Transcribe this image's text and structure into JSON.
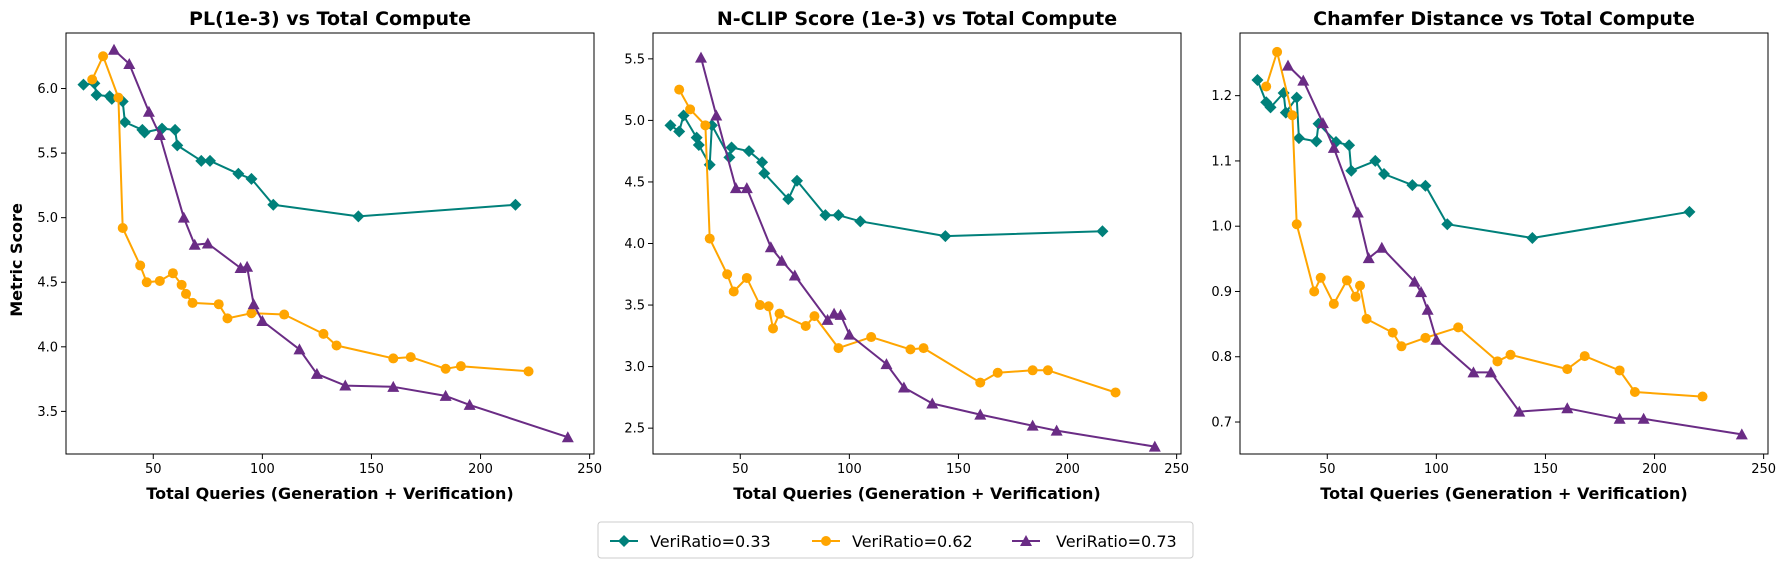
{
  "chart_data": [
    {
      "type": "line",
      "title": "PL(1e-3) vs Total Compute",
      "xlabel": "Total Queries (Generation + Verification)",
      "ylabel": "Metric Score",
      "xlim": [
        10,
        252
      ],
      "ylim": [
        3.17,
        6.43
      ],
      "xticks": [
        50,
        100,
        150,
        200,
        250
      ],
      "yticks": [
        3.5,
        4.0,
        4.5,
        5.0,
        5.5,
        6.0
      ],
      "ytick_labels": [
        "3.5",
        "4.0",
        "4.5",
        "5.0",
        "5.5",
        "6.0"
      ],
      "series": [
        {
          "name": "VeriRatio=0.33",
          "x": [
            18,
            23,
            24,
            30,
            31,
            36,
            37,
            45,
            46,
            54,
            60,
            61,
            72,
            76,
            89,
            95,
            105,
            144,
            216
          ],
          "y": [
            6.03,
            6.04,
            5.95,
            5.94,
            5.92,
            5.9,
            5.74,
            5.68,
            5.66,
            5.69,
            5.68,
            5.56,
            5.44,
            5.44,
            5.34,
            5.3,
            5.1,
            5.01,
            5.1
          ]
        },
        {
          "name": "VeriRatio=0.62",
          "x": [
            22,
            27,
            34,
            36,
            44,
            47,
            53,
            59,
            63,
            65,
            68,
            80,
            84,
            95,
            110,
            128,
            134,
            160,
            168,
            184,
            191,
            222
          ],
          "y": [
            6.07,
            6.25,
            5.93,
            4.92,
            4.63,
            4.5,
            4.51,
            4.57,
            4.48,
            4.41,
            4.34,
            4.33,
            4.22,
            4.26,
            4.25,
            4.1,
            4.01,
            3.91,
            3.92,
            3.83,
            3.85,
            3.81
          ]
        },
        {
          "name": "VeriRatio=0.73",
          "x": [
            32,
            39,
            48,
            53,
            64,
            69,
            75,
            90,
            93,
            96,
            100,
            117,
            125,
            138,
            160,
            184,
            195,
            240
          ],
          "y": [
            6.3,
            6.19,
            5.82,
            5.64,
            5.0,
            4.79,
            4.8,
            4.61,
            4.62,
            4.33,
            4.2,
            3.98,
            3.79,
            3.7,
            3.69,
            3.62,
            3.55,
            3.3
          ]
        }
      ]
    },
    {
      "type": "line",
      "title": "N-CLIP Score (1e-3) vs Total Compute",
      "xlabel": "Total Queries (Generation + Verification)",
      "ylabel": "",
      "xlim": [
        10,
        252
      ],
      "ylim": [
        2.29,
        5.71
      ],
      "xticks": [
        50,
        100,
        150,
        200,
        250
      ],
      "yticks": [
        2.5,
        3.0,
        3.5,
        4.0,
        4.5,
        5.0,
        5.5
      ],
      "ytick_labels": [
        "2.5",
        "3.0",
        "3.5",
        "4.0",
        "4.5",
        "5.0",
        "5.5"
      ],
      "series": [
        {
          "name": "VeriRatio=0.33",
          "x": [
            18,
            22,
            24,
            30,
            31,
            36,
            37,
            45,
            46,
            54,
            60,
            61,
            72,
            76,
            89,
            95,
            105,
            144,
            216
          ],
          "y": [
            4.96,
            4.91,
            5.04,
            4.86,
            4.8,
            4.64,
            4.96,
            4.7,
            4.78,
            4.75,
            4.66,
            4.57,
            4.36,
            4.51,
            4.23,
            4.23,
            4.18,
            4.06,
            4.1
          ]
        },
        {
          "name": "VeriRatio=0.62",
          "x": [
            22,
            27,
            34,
            36,
            44,
            47,
            53,
            59,
            63,
            65,
            68,
            80,
            84,
            95,
            110,
            128,
            134,
            160,
            168,
            184,
            191,
            222
          ],
          "y": [
            5.25,
            5.09,
            4.96,
            4.04,
            3.75,
            3.61,
            3.72,
            3.5,
            3.49,
            3.31,
            3.43,
            3.33,
            3.41,
            3.15,
            3.24,
            3.14,
            3.15,
            2.87,
            2.95,
            2.97,
            2.97,
            2.79
          ]
        },
        {
          "name": "VeriRatio=0.73",
          "x": [
            32,
            39,
            48,
            53,
            64,
            69,
            75,
            90,
            93,
            96,
            100,
            117,
            125,
            138,
            160,
            184,
            195,
            240
          ],
          "y": [
            5.51,
            5.04,
            4.45,
            4.45,
            3.97,
            3.86,
            3.74,
            3.38,
            3.43,
            3.42,
            3.26,
            3.02,
            2.83,
            2.7,
            2.61,
            2.52,
            2.48,
            2.35
          ]
        }
      ]
    },
    {
      "type": "line",
      "title": "Chamfer Distance vs Total Compute",
      "xlabel": "Total Queries (Generation + Verification)",
      "ylabel": "",
      "xlim": [
        10,
        252
      ],
      "ylim": [
        0.651,
        1.296
      ],
      "xticks": [
        50,
        100,
        150,
        200,
        250
      ],
      "yticks": [
        0.7,
        0.8,
        0.9,
        1.0,
        1.1,
        1.2
      ],
      "ytick_labels": [
        "0.7",
        "0.8",
        "0.9",
        "1.0",
        "1.1",
        "1.2"
      ],
      "series": [
        {
          "name": "VeriRatio=0.33",
          "x": [
            18,
            22,
            24,
            30,
            31,
            36,
            37,
            45,
            46,
            54,
            60,
            61,
            72,
            76,
            89,
            95,
            105,
            144,
            216
          ],
          "y": [
            1.224,
            1.19,
            1.182,
            1.204,
            1.174,
            1.197,
            1.135,
            1.13,
            1.157,
            1.129,
            1.124,
            1.085,
            1.1,
            1.08,
            1.063,
            1.062,
            1.003,
            0.982,
            1.022
          ]
        },
        {
          "name": "VeriRatio=0.62",
          "x": [
            22,
            27,
            34,
            36,
            44,
            47,
            53,
            59,
            63,
            65,
            68,
            80,
            84,
            95,
            110,
            128,
            134,
            160,
            168,
            184,
            191,
            222
          ],
          "y": [
            1.214,
            1.267,
            1.17,
            1.003,
            0.9,
            0.921,
            0.881,
            0.917,
            0.892,
            0.909,
            0.858,
            0.837,
            0.816,
            0.829,
            0.845,
            0.793,
            0.803,
            0.781,
            0.801,
            0.779,
            0.746,
            0.739
          ]
        },
        {
          "name": "VeriRatio=0.73",
          "x": [
            32,
            39,
            48,
            53,
            64,
            69,
            75,
            90,
            93,
            96,
            100,
            117,
            125,
            138,
            160,
            184,
            195,
            240
          ],
          "y": [
            1.246,
            1.223,
            1.158,
            1.12,
            1.021,
            0.951,
            0.967,
            0.915,
            0.899,
            0.872,
            0.826,
            0.776,
            0.776,
            0.716,
            0.721,
            0.705,
            0.705,
            0.681
          ]
        }
      ]
    }
  ],
  "legend": {
    "placement": "bottom-center",
    "entries": [
      {
        "label": "VeriRatio=0.33",
        "color": "#00807a",
        "marker": "diamond"
      },
      {
        "label": "VeriRatio=0.62",
        "color": "#ffa500",
        "marker": "circle"
      },
      {
        "label": "VeriRatio=0.73",
        "color": "#6a2c85",
        "marker": "triangle"
      }
    ]
  }
}
